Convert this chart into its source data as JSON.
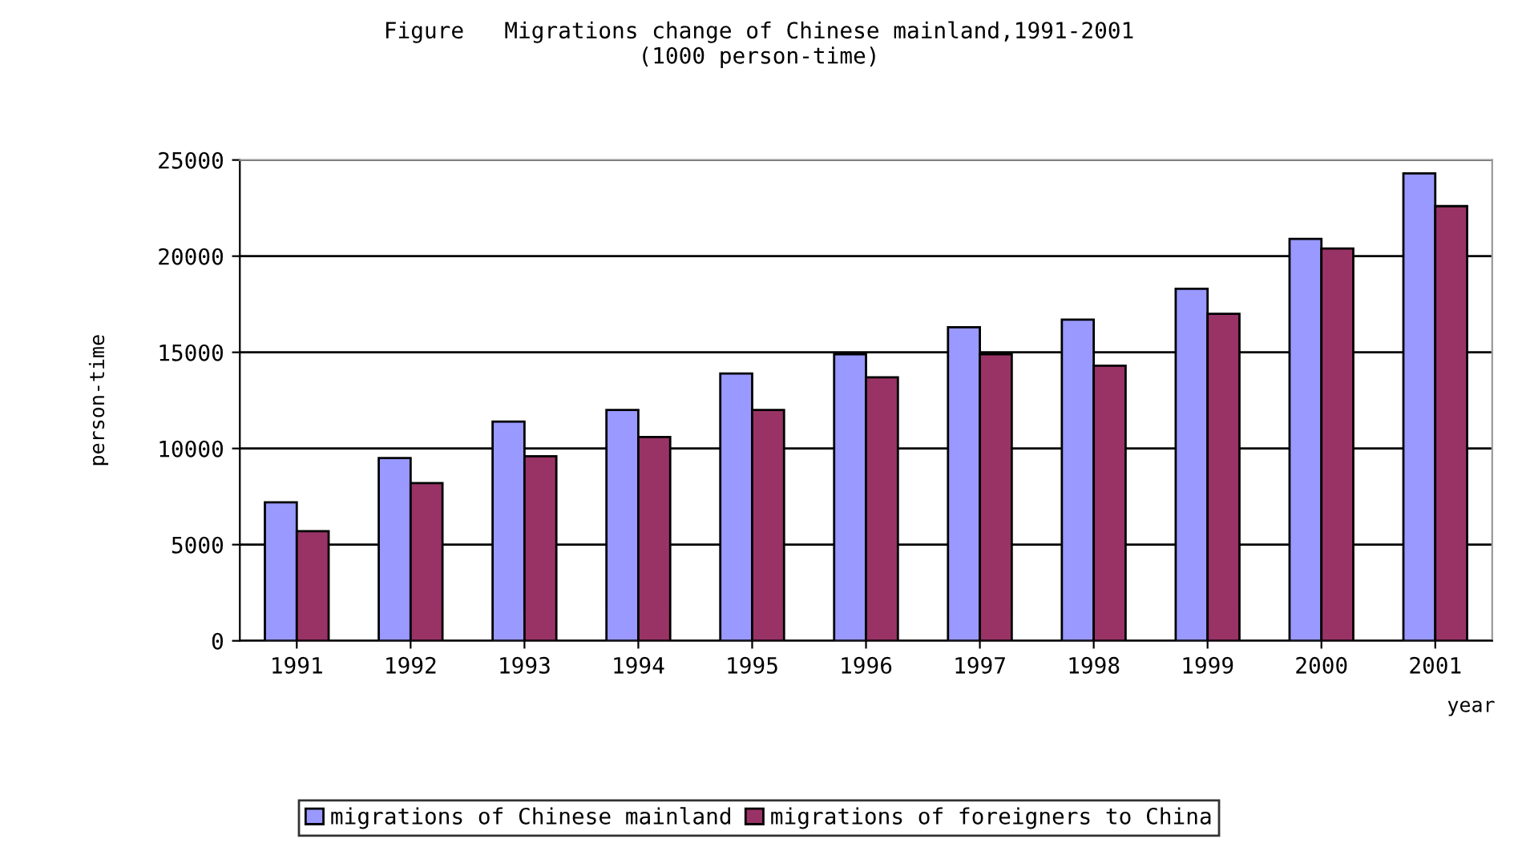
{
  "chart_data": {
    "type": "bar",
    "title": "Figure   Migrations change of Chinese mainland,1991-2001\n(1000 person-time)",
    "xlabel": "year",
    "ylabel": "person-time",
    "categories": [
      "1991",
      "1992",
      "1993",
      "1994",
      "1995",
      "1996",
      "1997",
      "1998",
      "1999",
      "2000",
      "2001"
    ],
    "series": [
      {
        "name": "migrations of Chinese mainland",
        "color": "#9999ff",
        "values": [
          7200,
          9500,
          11400,
          12000,
          13900,
          14900,
          16300,
          16700,
          18300,
          20900,
          24300
        ]
      },
      {
        "name": "migrations of foreigners to China",
        "color": "#993366",
        "values": [
          5700,
          8200,
          9600,
          10600,
          12000,
          13700,
          14900,
          14300,
          17000,
          20400,
          22600
        ]
      }
    ],
    "ylim": [
      0,
      25000
    ],
    "yticks": [
      0,
      5000,
      10000,
      15000,
      20000,
      25000
    ],
    "grid": "y",
    "legend": "bottom"
  }
}
